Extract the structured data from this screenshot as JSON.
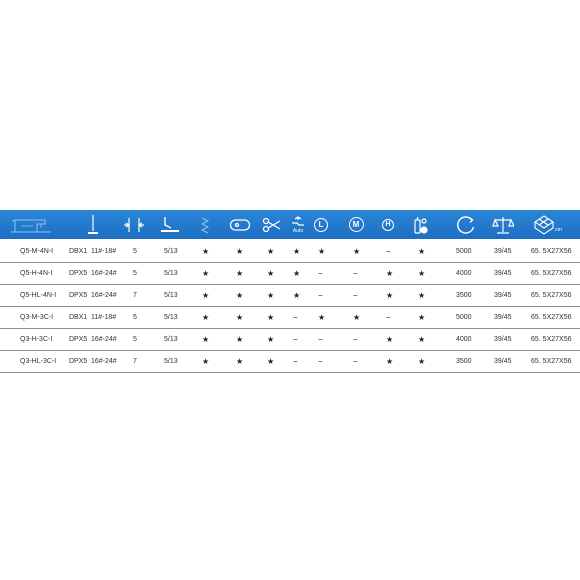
{
  "colors": {
    "header_blue": "#2272c8",
    "row_line": "#8f8f8f"
  },
  "header_icons": [
    "sewing-machine-icon",
    "needle-icon",
    "stitch-length-icon",
    "presser-foot-lift-icon",
    "zigzag-icon",
    "thread-trimmer-icon",
    "scissors-icon",
    "auto-foot-lift-icon",
    "l-badge-icon",
    "m-badge-icon",
    "h-badge-icon",
    "oil-dispenser-icon",
    "speed-dial-icon",
    "balance-scale-icon",
    "package-size-icon"
  ],
  "header_labels": {
    "auto": "Auto",
    "l": "L",
    "m": "M",
    "h": "H",
    "cm": "cm"
  },
  "rows": [
    {
      "model": "Q5-M-4N-I",
      "needle": "DBX1",
      "size": "11#-18#",
      "stitch": "5",
      "lift": "5/13",
      "c1": "★",
      "c2": "★",
      "c3": "★",
      "c4": "★",
      "c5": "★",
      "c6": "★",
      "c7": "−",
      "c8": "★",
      "speed": "5000",
      "weight": "39/45",
      "package": "65. 5X27X56"
    },
    {
      "model": "Q5-H-4N-I",
      "needle": "DPX5",
      "size": "16#-24#",
      "stitch": "5",
      "lift": "5/13",
      "c1": "★",
      "c2": "★",
      "c3": "★",
      "c4": "★",
      "c5": "−",
      "c6": "−",
      "c7": "★",
      "c8": "★",
      "speed": "4000",
      "weight": "39/45",
      "package": "65. 5X27X56"
    },
    {
      "model": "Q5-HL-4N-I",
      "needle": "DPX5",
      "size": "16#-24#",
      "stitch": "7",
      "lift": "5/13",
      "c1": "★",
      "c2": "★",
      "c3": "★",
      "c4": "★",
      "c5": "−",
      "c6": "−",
      "c7": "★",
      "c8": "★",
      "speed": "3500",
      "weight": "39/45",
      "package": "65. 5X27X56"
    },
    {
      "model": "Q3-M-3C-I",
      "needle": "DBX1",
      "size": "11#-18#",
      "stitch": "5",
      "lift": "5/13",
      "c1": "★",
      "c2": "★",
      "c3": "★",
      "c4": "−",
      "c5": "★",
      "c6": "★",
      "c7": "−",
      "c8": "★",
      "speed": "5000",
      "weight": "39/45",
      "package": "65. 5X27X56"
    },
    {
      "model": "Q3-H-3C-I",
      "needle": "DPX5",
      "size": "16#-24#",
      "stitch": "5",
      "lift": "5/13",
      "c1": "★",
      "c2": "★",
      "c3": "★",
      "c4": "−",
      "c5": "−",
      "c6": "−",
      "c7": "★",
      "c8": "★",
      "speed": "4000",
      "weight": "39/45",
      "package": "65. 5X27X56"
    },
    {
      "model": "Q3-HL-3C-I",
      "needle": "DPX5",
      "size": "16#-24#",
      "stitch": "7",
      "lift": "5/13",
      "c1": "★",
      "c2": "★",
      "c3": "★",
      "c4": "−",
      "c5": "−",
      "c6": "−",
      "c7": "★",
      "c8": "★",
      "speed": "3500",
      "weight": "39/45",
      "package": "65. 5X27X56"
    }
  ]
}
